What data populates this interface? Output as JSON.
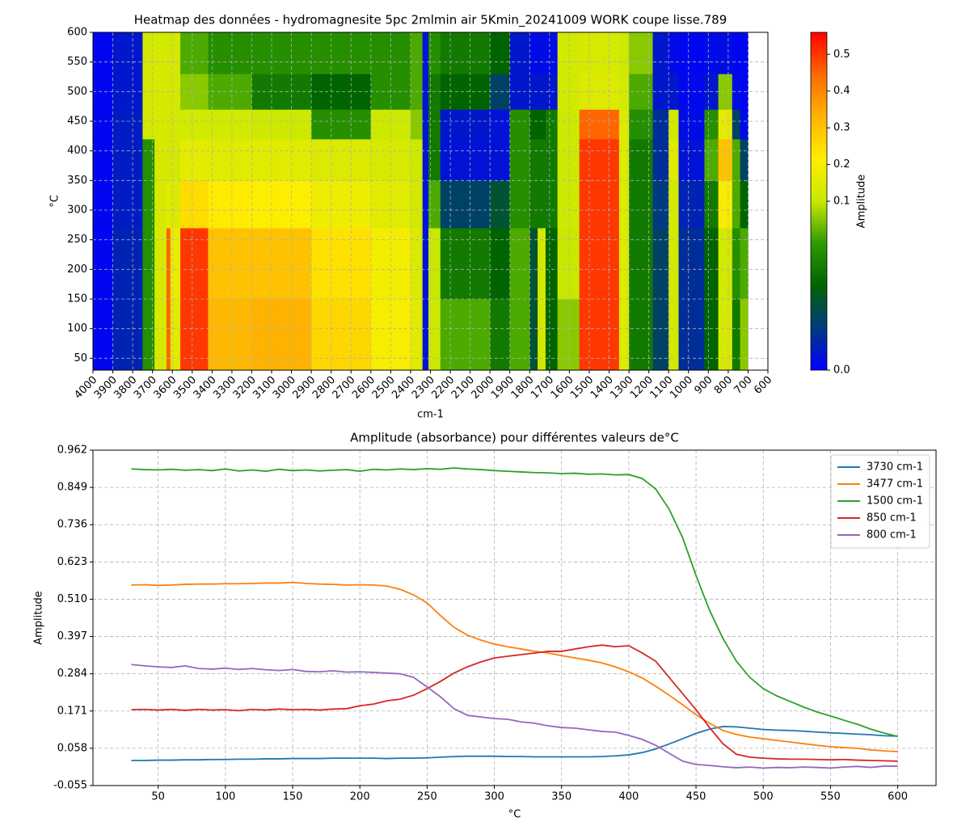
{
  "chart_data": [
    {
      "type": "heatmap",
      "title": "Heatmap des données - hydromagnesite 5pc 2mlmin air 5Kmin_20241009 WORK coupe lisse.789",
      "x_label": "cm-1",
      "y_label": "°C",
      "colorbar_label": "Amplitude",
      "x_edges": [
        4000,
        3900,
        3750,
        3690,
        3630,
        3610,
        3560,
        3420,
        3200,
        2900,
        2600,
        2400,
        2340,
        2310,
        2250,
        2000,
        1900,
        1800,
        1760,
        1720,
        1660,
        1550,
        1350,
        1300,
        1180,
        1100,
        1050,
        920,
        850,
        780,
        740,
        700
      ],
      "y_edges": [
        30,
        150,
        270,
        350,
        420,
        470,
        530,
        600
      ],
      "values": [
        [
          0.003,
          0.015,
          0.07,
          0.13,
          0.45,
          0.15,
          0.5,
          0.32,
          0.33,
          0.26,
          0.2,
          0.15,
          0.008,
          0.11,
          0.08,
          0.06,
          0.08,
          0.04,
          0.12,
          0.05,
          0.09,
          0.5,
          0.14,
          0.06,
          0.03,
          0.12,
          0.02,
          0.05,
          0.13,
          0.06,
          0.09
        ],
        [
          0.003,
          0.015,
          0.07,
          0.13,
          0.45,
          0.17,
          0.5,
          0.3,
          0.3,
          0.24,
          0.19,
          0.14,
          0.008,
          0.1,
          0.06,
          0.05,
          0.08,
          0.04,
          0.12,
          0.05,
          0.1,
          0.5,
          0.14,
          0.06,
          0.03,
          0.12,
          0.02,
          0.05,
          0.12,
          0.07,
          0.08
        ],
        [
          0.003,
          0.012,
          0.07,
          0.13,
          0.15,
          0.14,
          0.25,
          0.22,
          0.21,
          0.18,
          0.15,
          0.12,
          0.008,
          0.08,
          0.03,
          0.04,
          0.07,
          0.06,
          0.06,
          0.06,
          0.11,
          0.5,
          0.14,
          0.06,
          0.025,
          0.13,
          0.015,
          0.06,
          0.2,
          0.08,
          0.05
        ],
        [
          0.003,
          0.012,
          0.07,
          0.13,
          0.12,
          0.12,
          0.16,
          0.15,
          0.15,
          0.14,
          0.13,
          0.11,
          0.008,
          0.06,
          0.008,
          0.008,
          0.07,
          0.06,
          0.06,
          0.06,
          0.11,
          0.5,
          0.14,
          0.06,
          0.02,
          0.15,
          0.008,
          0.08,
          0.3,
          0.08,
          0.03
        ],
        [
          0.003,
          0.012,
          0.12,
          0.13,
          0.12,
          0.12,
          0.12,
          0.12,
          0.11,
          0.07,
          0.11,
          0.09,
          0.008,
          0.06,
          0.01,
          0.008,
          0.07,
          0.05,
          0.05,
          0.06,
          0.11,
          0.45,
          0.14,
          0.07,
          0.02,
          0.12,
          0.005,
          0.07,
          0.16,
          0.03,
          0.005
        ],
        [
          0.003,
          0.01,
          0.12,
          0.13,
          0.12,
          0.12,
          0.09,
          0.08,
          0.06,
          0.05,
          0.07,
          0.08,
          0.008,
          0.06,
          0.05,
          0.03,
          0.01,
          0.01,
          0.01,
          0.01,
          0.12,
          0.14,
          0.12,
          0.08,
          0.01,
          0.01,
          0.004,
          0.01,
          0.09,
          0.005,
          0.003
        ],
        [
          0.003,
          0.01,
          0.12,
          0.13,
          0.12,
          0.12,
          0.08,
          0.07,
          0.07,
          0.07,
          0.07,
          0.08,
          0.008,
          0.07,
          0.06,
          0.05,
          0.01,
          0.005,
          0.005,
          0.005,
          0.12,
          0.13,
          0.11,
          0.09,
          0.01,
          0.005,
          0.003,
          0.005,
          0.005,
          0.003,
          0.003
        ]
      ],
      "colormap": [
        "#0000ff",
        "#003a80",
        "#006400",
        "#2e9a00",
        "#c8e800",
        "#ffee00",
        "#ffb300",
        "#ff6a00",
        "#ff0000"
      ],
      "clim": [
        0,
        0.56
      ],
      "norm": {
        "type": "twoslope",
        "vcenter": 0.1
      },
      "xlim": [
        4000,
        600
      ],
      "ylim": [
        30,
        600
      ],
      "xticks": [
        4000,
        3900,
        3800,
        3700,
        3600,
        3500,
        3400,
        3300,
        3200,
        3100,
        3000,
        2900,
        2800,
        2700,
        2600,
        2500,
        2400,
        2300,
        2200,
        2100,
        2000,
        1900,
        1800,
        1700,
        1600,
        1500,
        1400,
        1300,
        1200,
        1100,
        1000,
        900,
        800,
        700,
        600
      ],
      "yticks": [
        50,
        100,
        150,
        200,
        250,
        300,
        350,
        400,
        450,
        500,
        550,
        600
      ],
      "cticks": [
        {
          "value": 0,
          "label": "0.0"
        },
        0.1,
        0.2,
        0.3,
        0.4,
        0.5
      ],
      "grid": true
    },
    {
      "type": "line",
      "title": "Amplitude (absorbance) pour différentes valeurs de°C",
      "x_label": "°C",
      "y_label": "Amplitude",
      "x": [
        30,
        40,
        50,
        60,
        70,
        80,
        90,
        100,
        110,
        120,
        130,
        140,
        150,
        160,
        170,
        180,
        190,
        200,
        210,
        220,
        230,
        240,
        250,
        260,
        270,
        280,
        290,
        300,
        310,
        320,
        330,
        340,
        350,
        360,
        370,
        380,
        390,
        400,
        410,
        420,
        430,
        440,
        450,
        460,
        470,
        480,
        490,
        500,
        510,
        520,
        530,
        540,
        550,
        560,
        570,
        580,
        590,
        600
      ],
      "series": [
        {
          "name": "3730 cm-1",
          "color": "#1f77b4",
          "values": [
            0.021,
            0.021,
            0.022,
            0.022,
            0.023,
            0.023,
            0.024,
            0.024,
            0.025,
            0.025,
            0.026,
            0.026,
            0.027,
            0.027,
            0.027,
            0.028,
            0.028,
            0.028,
            0.028,
            0.027,
            0.028,
            0.028,
            0.029,
            0.031,
            0.033,
            0.034,
            0.034,
            0.034,
            0.033,
            0.033,
            0.032,
            0.032,
            0.032,
            0.032,
            0.032,
            0.033,
            0.035,
            0.038,
            0.045,
            0.056,
            0.071,
            0.087,
            0.103,
            0.116,
            0.124,
            0.123,
            0.119,
            0.115,
            0.113,
            0.112,
            0.11,
            0.107,
            0.105,
            0.103,
            0.101,
            0.099,
            0.096,
            0.095
          ]
        },
        {
          "name": "3477 cm-1",
          "color": "#ff7f0e",
          "values": [
            0.553,
            0.554,
            0.552,
            0.553,
            0.555,
            0.556,
            0.556,
            0.557,
            0.557,
            0.558,
            0.559,
            0.559,
            0.561,
            0.558,
            0.556,
            0.555,
            0.553,
            0.554,
            0.553,
            0.55,
            0.54,
            0.523,
            0.499,
            0.46,
            0.425,
            0.401,
            0.386,
            0.374,
            0.366,
            0.359,
            0.352,
            0.347,
            0.339,
            0.332,
            0.325,
            0.317,
            0.305,
            0.29,
            0.271,
            0.246,
            0.219,
            0.19,
            0.16,
            0.134,
            0.112,
            0.1,
            0.092,
            0.087,
            0.082,
            0.077,
            0.072,
            0.067,
            0.063,
            0.06,
            0.058,
            0.053,
            0.05,
            0.048
          ]
        },
        {
          "name": "1500 cm-1",
          "color": "#2ca02c",
          "values": [
            0.905,
            0.903,
            0.902,
            0.904,
            0.901,
            0.903,
            0.9,
            0.905,
            0.899,
            0.902,
            0.898,
            0.904,
            0.9,
            0.902,
            0.899,
            0.901,
            0.903,
            0.898,
            0.904,
            0.902,
            0.905,
            0.903,
            0.906,
            0.904,
            0.908,
            0.905,
            0.903,
            0.9,
            0.898,
            0.896,
            0.894,
            0.893,
            0.891,
            0.892,
            0.889,
            0.89,
            0.887,
            0.888,
            0.876,
            0.844,
            0.783,
            0.697,
            0.582,
            0.477,
            0.391,
            0.322,
            0.273,
            0.239,
            0.217,
            0.2,
            0.183,
            0.168,
            0.156,
            0.143,
            0.131,
            0.116,
            0.104,
            0.094
          ]
        },
        {
          "name": "850 cm-1",
          "color": "#d62728",
          "values": [
            0.175,
            0.176,
            0.174,
            0.176,
            0.173,
            0.176,
            0.174,
            0.175,
            0.172,
            0.176,
            0.174,
            0.177,
            0.175,
            0.176,
            0.174,
            0.177,
            0.178,
            0.187,
            0.192,
            0.202,
            0.207,
            0.219,
            0.239,
            0.261,
            0.286,
            0.305,
            0.32,
            0.332,
            0.337,
            0.342,
            0.347,
            0.352,
            0.352,
            0.359,
            0.366,
            0.371,
            0.366,
            0.369,
            0.347,
            0.322,
            0.273,
            0.224,
            0.175,
            0.121,
            0.072,
            0.04,
            0.031,
            0.028,
            0.026,
            0.025,
            0.025,
            0.024,
            0.023,
            0.024,
            0.022,
            0.021,
            0.02,
            0.019
          ]
        },
        {
          "name": "800 cm-1",
          "color": "#9467bd",
          "values": [
            0.312,
            0.308,
            0.305,
            0.303,
            0.308,
            0.3,
            0.298,
            0.301,
            0.297,
            0.3,
            0.296,
            0.294,
            0.297,
            0.291,
            0.29,
            0.293,
            0.289,
            0.29,
            0.288,
            0.286,
            0.284,
            0.273,
            0.244,
            0.214,
            0.178,
            0.158,
            0.153,
            0.148,
            0.146,
            0.138,
            0.134,
            0.126,
            0.121,
            0.119,
            0.114,
            0.109,
            0.107,
            0.097,
            0.085,
            0.067,
            0.043,
            0.019,
            0.009,
            0.006,
            0.002,
            -0.001,
            0.001,
            -0.002,
            0.0,
            -0.001,
            0.001,
            0.0,
            -0.002,
            0.001,
            0.003,
            0.0,
            0.004,
            0.004
          ]
        }
      ],
      "xlim": [
        1.5,
        628.5
      ],
      "ylim": [
        -0.055,
        0.962
      ],
      "xticks": [
        50,
        100,
        150,
        200,
        250,
        300,
        350,
        400,
        450,
        500,
        550,
        600
      ],
      "yticks": [
        -0.055,
        0.058,
        0.171,
        0.284,
        0.397,
        {
          "value": 0.51,
          "label": "0.510"
        },
        0.623,
        0.736,
        0.849,
        0.962
      ],
      "grid": true,
      "legend": "upper right"
    }
  ]
}
